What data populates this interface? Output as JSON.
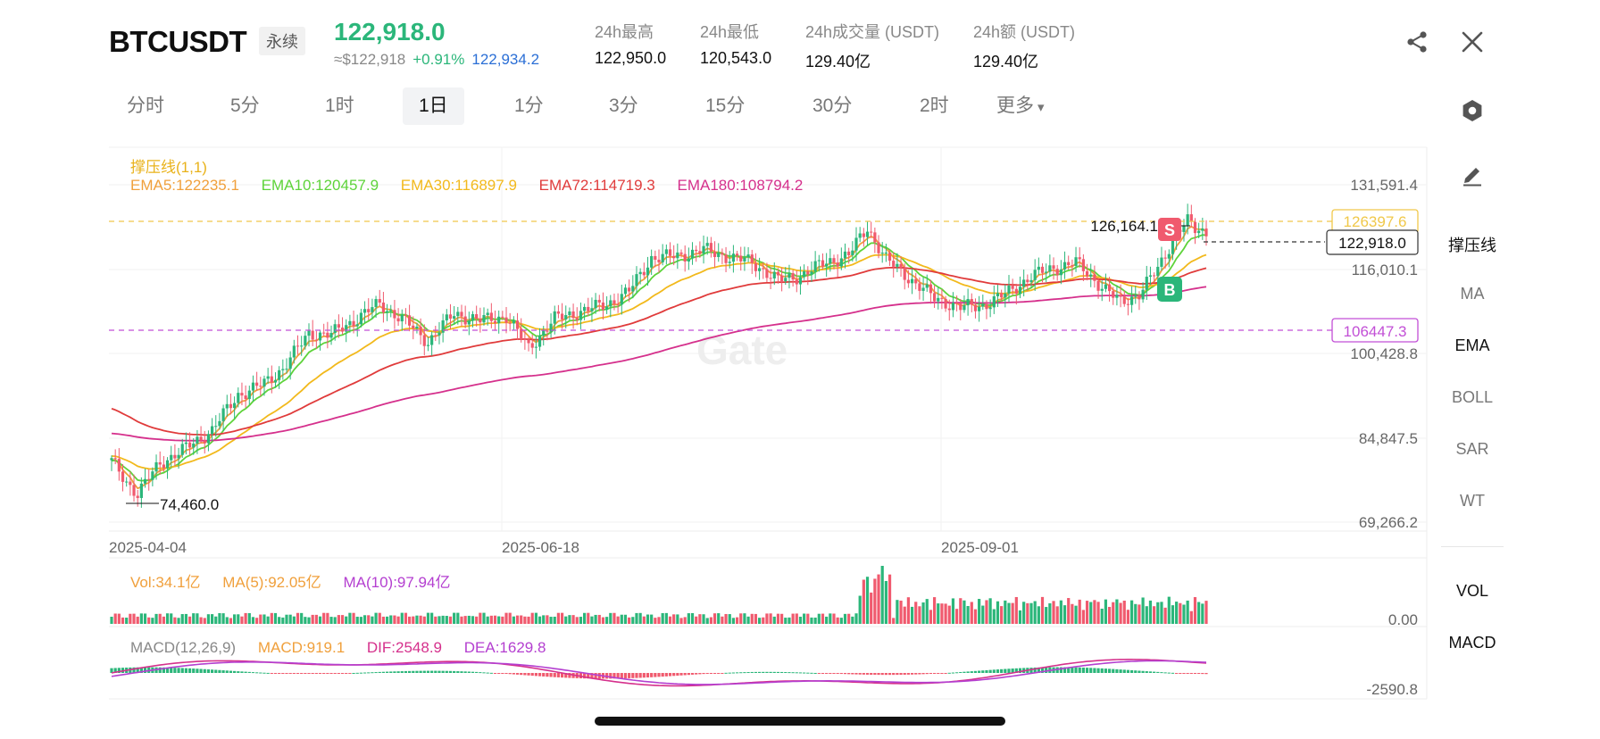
{
  "header": {
    "symbol": "BTCUSDT",
    "contract_type": "永续",
    "last_price": "122,918.0",
    "fiat_price": "≈$122,918",
    "change_pct": "+0.91%",
    "mark_price": "122,934.2",
    "stats": [
      {
        "label": "24h最高",
        "value": "122,950.0"
      },
      {
        "label": "24h最低",
        "value": "120,543.0"
      },
      {
        "label": "24h成交量 (USDT)",
        "value": "129.40亿"
      },
      {
        "label": "24h额 (USDT)",
        "value": "129.40亿"
      }
    ],
    "icons": {
      "share": "share-icon",
      "close": "close-icon",
      "settings": "gear-icon",
      "draw": "pencil-icon"
    }
  },
  "timeframes": {
    "items": [
      "分时",
      "5分",
      "1时",
      "1日",
      "1分",
      "3分",
      "15分",
      "30分",
      "2时",
      "更多"
    ],
    "active": "1日",
    "more_arrow": "▾"
  },
  "indicators": {
    "support_resistance": "撑压线(1,1)",
    "ema5": "EMA5:122235.1",
    "ema10": "EMA10:120457.9",
    "ema30": "EMA30:116897.9",
    "ema72": "EMA72:114719.3",
    "ema180": "EMA180:108794.2"
  },
  "price_axis": [
    "131,591.4",
    "116,010.1",
    "100,428.8",
    "84,847.5",
    "69,266.2"
  ],
  "price_tags": {
    "resistance": "126397.6",
    "support": "106447.3",
    "current": "122,918.0",
    "high_marker": "126,164.1",
    "low_marker": "74,460.0",
    "sell_badge": "S",
    "buy_badge": "B"
  },
  "date_axis": [
    "2025-04-04",
    "2025-06-18",
    "2025-09-01"
  ],
  "volume": {
    "vol": "Vol:34.1亿",
    "ma5": "MA(5):92.05亿",
    "ma10": "MA(10):97.94亿",
    "axis_label": "0.00"
  },
  "macd": {
    "title": "MACD(12,26,9)",
    "macd": "MACD:919.1",
    "dif": "DIF:2548.9",
    "dea": "DEA:1629.8",
    "axis_label": "-2590.8"
  },
  "watermark": "Gate",
  "sidebar": {
    "items": [
      {
        "label": "撑压线",
        "active": true
      },
      {
        "label": "MA",
        "active": false
      },
      {
        "label": "EMA",
        "active": true
      },
      {
        "label": "BOLL",
        "active": false
      },
      {
        "label": "SAR",
        "active": false
      },
      {
        "label": "WT",
        "active": false
      }
    ],
    "sub_items": [
      {
        "label": "VOL",
        "active": true
      },
      {
        "label": "MACD",
        "active": true
      }
    ]
  },
  "colors": {
    "up": "#2bb67a",
    "down": "#f05a6e",
    "ema5": "#f0a03c",
    "ema10": "#5ed33a",
    "ema30": "#f2b91c",
    "ema72": "#e03b3b",
    "ema180": "#d5308c",
    "resistance": "#f0c84a",
    "support": "#c24fd6",
    "dea": "#b43fd0",
    "macd_label": "#f0a03c",
    "dif": "#d5308c",
    "sr_label": "#e9b21a"
  }
}
